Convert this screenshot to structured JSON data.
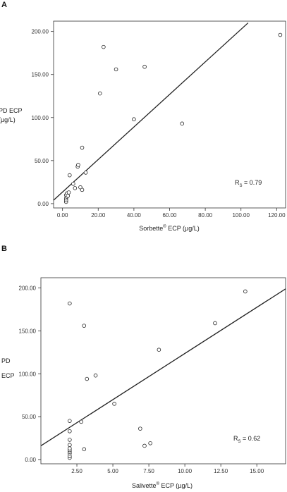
{
  "chart_data": [
    {
      "type": "scatter",
      "panel": "A",
      "xlabel": {
        "pre": "Sorbette",
        "sup": "®",
        "post": " ECP (µg/L)"
      },
      "ylabel": [
        "PD ECP",
        "(µg/L)"
      ],
      "annotation": {
        "pre": "R",
        "sub": "S",
        "post": " = 0.79"
      },
      "xlim": [
        -5,
        125
      ],
      "ylim": [
        -5,
        212
      ],
      "xticks": [
        "0.00",
        "20.00",
        "40.00",
        "60.00",
        "80.00",
        "100.00",
        "120.00"
      ],
      "yticks": [
        "0.00",
        "50.00",
        "100.00",
        "150.00",
        "200.00"
      ],
      "xtick_values": [
        0,
        20,
        40,
        60,
        80,
        100,
        120
      ],
      "ytick_values": [
        0,
        50,
        100,
        150,
        200
      ],
      "points": [
        {
          "x": 2,
          "y": 2
        },
        {
          "x": 2,
          "y": 4
        },
        {
          "x": 2,
          "y": 6
        },
        {
          "x": 2.3,
          "y": 8
        },
        {
          "x": 2,
          "y": 10
        },
        {
          "x": 2.5,
          "y": 12
        },
        {
          "x": 3,
          "y": 9
        },
        {
          "x": 3.5,
          "y": 13
        },
        {
          "x": 4,
          "y": 33
        },
        {
          "x": 6,
          "y": 23
        },
        {
          "x": 7,
          "y": 18
        },
        {
          "x": 8.5,
          "y": 43
        },
        {
          "x": 8.8,
          "y": 45
        },
        {
          "x": 10,
          "y": 19
        },
        {
          "x": 11,
          "y": 16
        },
        {
          "x": 11,
          "y": 65
        },
        {
          "x": 13,
          "y": 36
        },
        {
          "x": 21,
          "y": 128
        },
        {
          "x": 23,
          "y": 182
        },
        {
          "x": 30,
          "y": 156
        },
        {
          "x": 40,
          "y": 98
        },
        {
          "x": 46,
          "y": 159
        },
        {
          "x": 67,
          "y": 93
        },
        {
          "x": 122,
          "y": 196
        }
      ],
      "fit_line": {
        "x": [
          -5,
          104
        ],
        "y": [
          4,
          210
        ]
      }
    },
    {
      "type": "scatter",
      "panel": "B",
      "xlabel": {
        "pre": "Salivette",
        "sup": "®",
        "post": " ECP (µg/L)"
      },
      "ylabel": [
        "PD",
        "ECP"
      ],
      "annotation": {
        "pre": "R",
        "sub": "S",
        "post": " = 0.62"
      },
      "xlim": [
        0,
        17
      ],
      "ylim": [
        -5,
        212
      ],
      "xticks": [
        "2.50",
        "5.00",
        "7.50",
        "10.00",
        "12.50",
        "15.00"
      ],
      "yticks": [
        "0.00",
        "50.00",
        "100.00",
        "150.00",
        "200.00"
      ],
      "xtick_values": [
        2.5,
        5,
        7.5,
        10,
        12.5,
        15
      ],
      "ytick_values": [
        0,
        50,
        100,
        150,
        200
      ],
      "points": [
        {
          "x": 2,
          "y": 2
        },
        {
          "x": 2,
          "y": 4
        },
        {
          "x": 2,
          "y": 7
        },
        {
          "x": 2,
          "y": 9
        },
        {
          "x": 2,
          "y": 11
        },
        {
          "x": 2,
          "y": 13
        },
        {
          "x": 2,
          "y": 17
        },
        {
          "x": 2,
          "y": 23
        },
        {
          "x": 2,
          "y": 33
        },
        {
          "x": 2,
          "y": 45
        },
        {
          "x": 2,
          "y": 182
        },
        {
          "x": 2.8,
          "y": 44
        },
        {
          "x": 3,
          "y": 12
        },
        {
          "x": 3,
          "y": 156
        },
        {
          "x": 3.2,
          "y": 94
        },
        {
          "x": 3.8,
          "y": 98
        },
        {
          "x": 5.1,
          "y": 65
        },
        {
          "x": 6.9,
          "y": 36
        },
        {
          "x": 7.2,
          "y": 16
        },
        {
          "x": 7.6,
          "y": 19
        },
        {
          "x": 8.2,
          "y": 128
        },
        {
          "x": 12.1,
          "y": 159
        },
        {
          "x": 14.2,
          "y": 196
        }
      ],
      "fit_line": {
        "x": [
          0,
          17
        ],
        "y": [
          16,
          199
        ]
      }
    }
  ]
}
